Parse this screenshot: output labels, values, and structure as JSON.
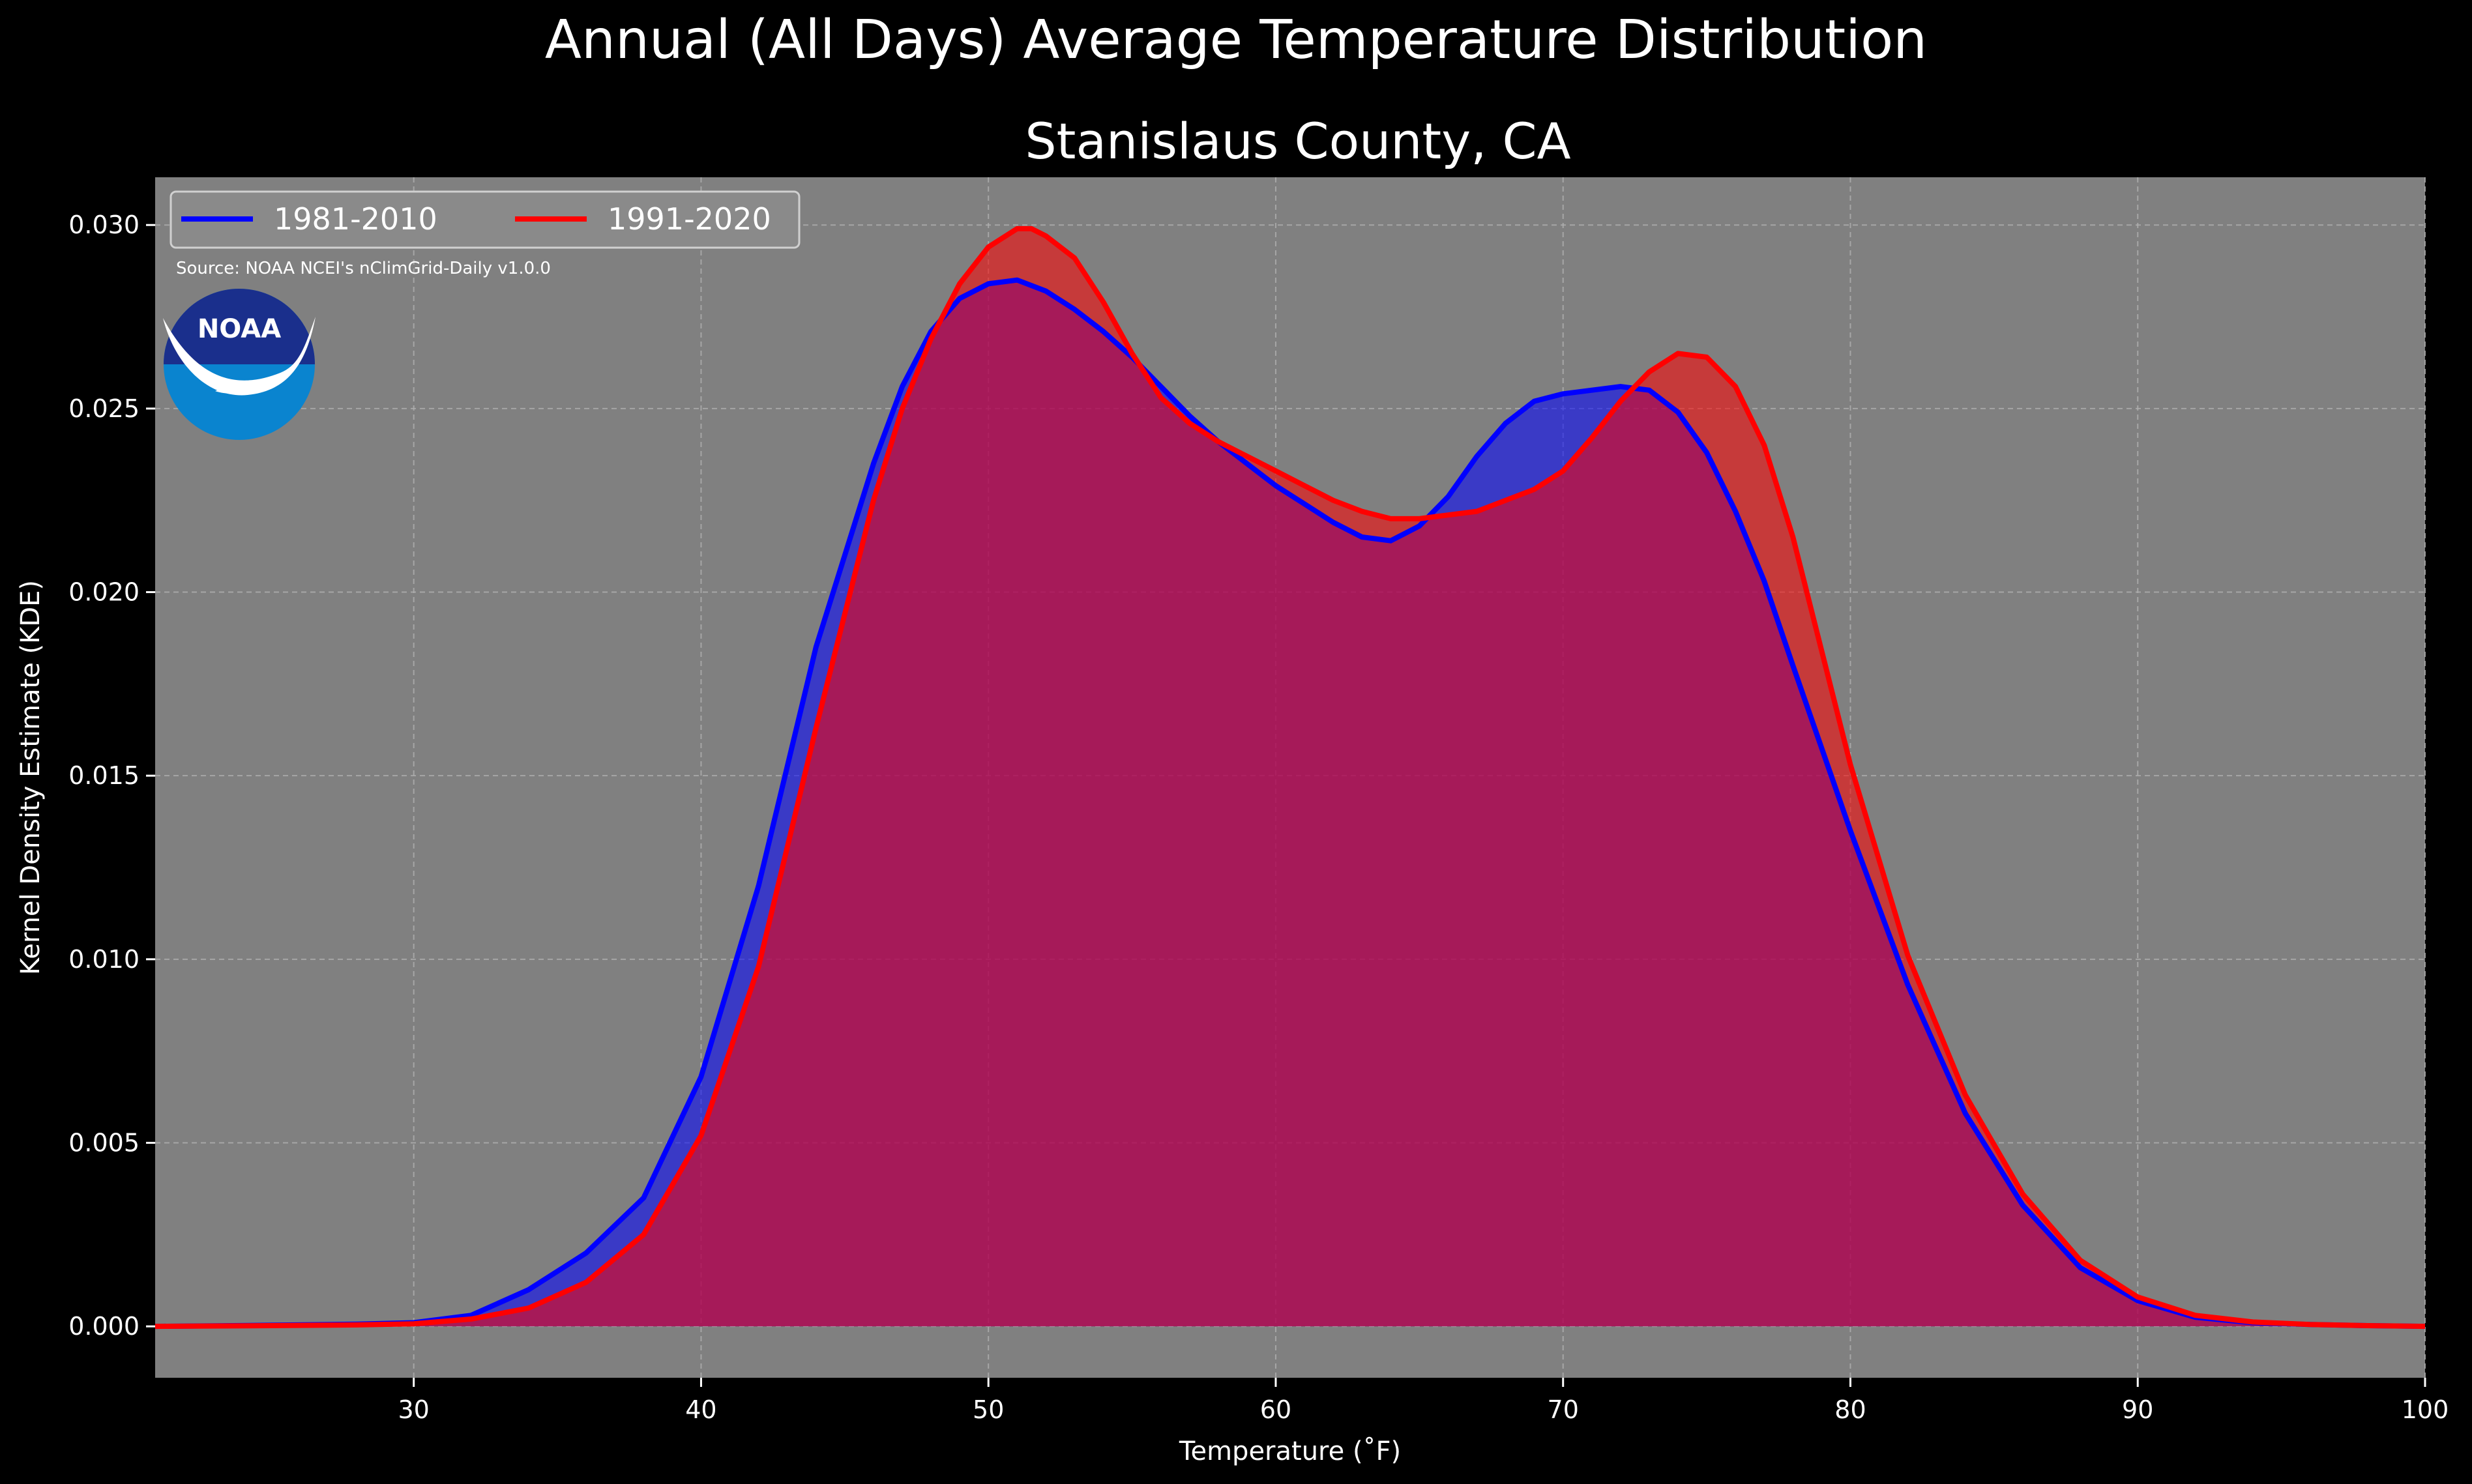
{
  "figure": {
    "suptitle": "Annual (All Days) Average Temperature Distribution",
    "subtitle": "Stanislaus County, CA",
    "source_note": "Source: NOAA NCEI's nClimGrid-Daily v1.0.0",
    "logo_text": "NOAA"
  },
  "colors": {
    "background": "#000000",
    "plot_bg": "#808080",
    "series_1981": "#0000ff",
    "series_1991": "#ff0000",
    "overlap_fill": "#9c1e5c",
    "text": "#ffffff"
  },
  "chart_data": {
    "type": "area",
    "title": "Stanislaus County, CA",
    "xlabel": "Temperature (˚F)",
    "ylabel": "Kernel Density Estimate (KDE)",
    "xlim": [
      21,
      100
    ],
    "ylim": [
      -0.0014,
      0.0313
    ],
    "xticks": [
      30,
      40,
      50,
      60,
      70,
      80,
      90,
      100
    ],
    "yticks": [
      0.0,
      0.005,
      0.01,
      0.015,
      0.02,
      0.025,
      0.03
    ],
    "ytick_labels": [
      "0.000",
      "0.005",
      "0.010",
      "0.015",
      "0.020",
      "0.025",
      "0.030"
    ],
    "grid": true,
    "legend_position": "top-left",
    "series": [
      {
        "name": "1981-2010",
        "color": "#0000ff",
        "x": [
          21,
          25,
          28,
          30,
          32,
          34,
          36,
          38,
          40,
          42,
          44,
          46,
          47,
          48,
          49,
          50,
          51,
          52,
          53,
          54,
          55,
          56,
          57,
          58,
          59,
          60,
          61,
          62,
          63,
          64,
          65,
          66,
          67,
          68,
          69,
          70,
          71,
          72,
          73,
          74,
          75,
          76,
          77,
          78,
          80,
          82,
          84,
          86,
          88,
          90,
          92,
          94,
          96,
          98,
          100
        ],
        "y": [
          0.0,
          3e-05,
          6e-05,
          0.0001,
          0.0003,
          0.001,
          0.002,
          0.0035,
          0.0068,
          0.012,
          0.0185,
          0.0235,
          0.0256,
          0.0271,
          0.028,
          0.0284,
          0.0285,
          0.0282,
          0.0277,
          0.0271,
          0.0264,
          0.0256,
          0.0248,
          0.0241,
          0.0235,
          0.0229,
          0.0224,
          0.0219,
          0.0215,
          0.0214,
          0.0218,
          0.0226,
          0.0237,
          0.0246,
          0.0252,
          0.0254,
          0.0255,
          0.0256,
          0.0255,
          0.0249,
          0.0238,
          0.0222,
          0.0203,
          0.018,
          0.0135,
          0.0093,
          0.0058,
          0.0033,
          0.0016,
          0.0007,
          0.00025,
          0.0001,
          5e-05,
          2e-05,
          0.0
        ]
      },
      {
        "name": "1991-2020",
        "color": "#ff0000",
        "x": [
          21,
          25,
          28,
          30,
          32,
          34,
          36,
          38,
          40,
          42,
          44,
          46,
          47,
          48,
          49,
          50,
          51,
          51.5,
          52,
          53,
          54,
          55,
          56,
          57,
          58,
          59,
          60,
          61,
          62,
          63,
          64,
          65,
          66,
          67,
          68,
          69,
          70,
          71,
          72,
          73,
          74,
          75,
          76,
          77,
          78,
          80,
          82,
          84,
          86,
          88,
          90,
          92,
          94,
          96,
          98,
          100
        ],
        "y": [
          0.0,
          2e-05,
          4e-05,
          7e-05,
          0.0002,
          0.0005,
          0.0012,
          0.0025,
          0.0052,
          0.0098,
          0.0163,
          0.0225,
          0.025,
          0.0269,
          0.0284,
          0.0294,
          0.0299,
          0.0299,
          0.0297,
          0.0291,
          0.0279,
          0.0265,
          0.0253,
          0.0246,
          0.0241,
          0.0237,
          0.0233,
          0.0229,
          0.0225,
          0.0222,
          0.022,
          0.022,
          0.0221,
          0.0222,
          0.0225,
          0.0228,
          0.0233,
          0.0242,
          0.0252,
          0.026,
          0.0265,
          0.0264,
          0.0256,
          0.024,
          0.0215,
          0.0153,
          0.0101,
          0.0063,
          0.0036,
          0.0018,
          0.0008,
          0.0003,
          0.00012,
          5e-05,
          2e-05,
          0.0
        ]
      }
    ]
  }
}
